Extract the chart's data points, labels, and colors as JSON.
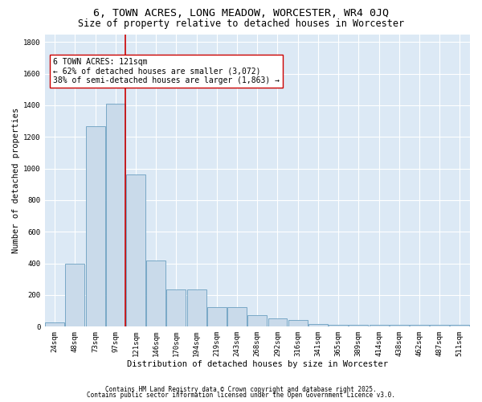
{
  "title": "6, TOWN ACRES, LONG MEADOW, WORCESTER, WR4 0JQ",
  "subtitle": "Size of property relative to detached houses in Worcester",
  "xlabel": "Distribution of detached houses by size in Worcester",
  "ylabel": "Number of detached properties",
  "categories": [
    "24sqm",
    "48sqm",
    "73sqm",
    "97sqm",
    "121sqm",
    "146sqm",
    "170sqm",
    "194sqm",
    "219sqm",
    "243sqm",
    "268sqm",
    "292sqm",
    "316sqm",
    "341sqm",
    "365sqm",
    "389sqm",
    "414sqm",
    "438sqm",
    "462sqm",
    "487sqm",
    "511sqm"
  ],
  "values": [
    25,
    400,
    1270,
    1410,
    960,
    420,
    235,
    235,
    125,
    125,
    70,
    50,
    40,
    15,
    10,
    10,
    10,
    10,
    10,
    10,
    10
  ],
  "bar_color": "#c9daea",
  "bar_edge_color": "#6a9fc0",
  "vline_color": "#cc0000",
  "vline_x": 3.5,
  "annotation_text": "6 TOWN ACRES: 121sqm\n← 62% of detached houses are smaller (3,072)\n38% of semi-detached houses are larger (1,863) →",
  "annotation_box_color": "white",
  "annotation_box_edge_color": "#cc0000",
  "ylim": [
    0,
    1850
  ],
  "yticks": [
    0,
    200,
    400,
    600,
    800,
    1000,
    1200,
    1400,
    1600,
    1800
  ],
  "background_color": "#dce9f5",
  "grid_color": "white",
  "footer_line1": "Contains HM Land Registry data © Crown copyright and database right 2025.",
  "footer_line2": "Contains public sector information licensed under the Open Government Licence v3.0.",
  "title_fontsize": 9.5,
  "subtitle_fontsize": 8.5,
  "axis_label_fontsize": 7.5,
  "tick_fontsize": 6.5,
  "annotation_fontsize": 7,
  "footer_fontsize": 5.5
}
